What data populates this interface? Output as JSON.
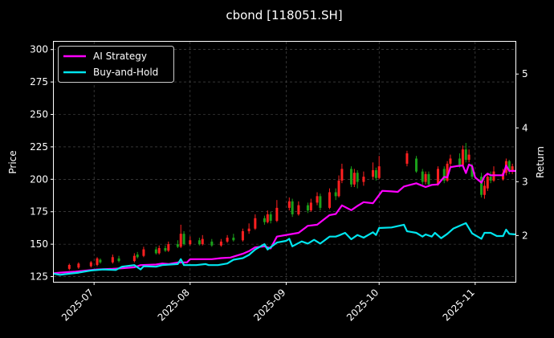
{
  "chart_data": {
    "type": "line",
    "title": "cbond [118051.SH]",
    "ylabel_left": "Price",
    "ylabel_right": "Return",
    "x_range": [
      "2025-06-18",
      "2025-11-14"
    ],
    "ylim_left": [
      121,
      306
    ],
    "ylim_right": [
      1.14,
      5.6
    ],
    "yticks_left": [
      125,
      150,
      175,
      200,
      225,
      250,
      275,
      300
    ],
    "yticks_right": [
      2,
      3,
      4,
      5
    ],
    "xticks": [
      {
        "date": "2025-07-01",
        "label": "2025-07"
      },
      {
        "date": "2025-08-01",
        "label": "2025-08"
      },
      {
        "date": "2025-09-01",
        "label": "2025-09"
      },
      {
        "date": "2025-10-01",
        "label": "2025-10"
      },
      {
        "date": "2025-11-01",
        "label": "2025-11"
      }
    ],
    "grid": true,
    "legend_position": "top-left",
    "colors": {
      "background": "#000000",
      "ai_strategy": "#ff00ff",
      "buy_and_hold": "#00e5ee",
      "candle_up": "#ff2020",
      "candle_down": "#1aa01a",
      "grid": "#555555",
      "axes": "#ffffff"
    },
    "series": [
      {
        "name": "AI Strategy",
        "axis": "right",
        "color": "#ff00ff",
        "points": [
          [
            "2025-06-18",
            1.3
          ],
          [
            "2025-06-20",
            1.31
          ],
          [
            "2025-06-25",
            1.33
          ],
          [
            "2025-07-02",
            1.37
          ],
          [
            "2025-07-07",
            1.38
          ],
          [
            "2025-07-10",
            1.39
          ],
          [
            "2025-07-14",
            1.41
          ],
          [
            "2025-07-16",
            1.45
          ],
          [
            "2025-07-21",
            1.46
          ],
          [
            "2025-07-23",
            1.48
          ],
          [
            "2025-07-25",
            1.47
          ],
          [
            "2025-07-28",
            1.5
          ],
          [
            "2025-07-31",
            1.5
          ],
          [
            "2025-08-01",
            1.56
          ],
          [
            "2025-08-05",
            1.56
          ],
          [
            "2025-08-08",
            1.56
          ],
          [
            "2025-08-11",
            1.58
          ],
          [
            "2025-08-14",
            1.59
          ],
          [
            "2025-08-18",
            1.66
          ],
          [
            "2025-08-20",
            1.71
          ],
          [
            "2025-08-22",
            1.78
          ],
          [
            "2025-08-25",
            1.8
          ],
          [
            "2025-08-27",
            1.76
          ],
          [
            "2025-08-29",
            1.98
          ],
          [
            "2025-09-02",
            2.02
          ],
          [
            "2025-09-05",
            2.05
          ],
          [
            "2025-09-08",
            2.18
          ],
          [
            "2025-09-11",
            2.2
          ],
          [
            "2025-09-15",
            2.38
          ],
          [
            "2025-09-17",
            2.4
          ],
          [
            "2025-09-19",
            2.56
          ],
          [
            "2025-09-22",
            2.47
          ],
          [
            "2025-09-24",
            2.55
          ],
          [
            "2025-09-26",
            2.62
          ],
          [
            "2025-09-29",
            2.6
          ],
          [
            "2025-10-02",
            2.83
          ],
          [
            "2025-10-05",
            2.82
          ],
          [
            "2025-10-07",
            2.81
          ],
          [
            "2025-10-09",
            2.91
          ],
          [
            "2025-10-13",
            2.97
          ],
          [
            "2025-10-16",
            2.9
          ],
          [
            "2025-10-18",
            2.94
          ],
          [
            "2025-10-20",
            2.95
          ],
          [
            "2025-10-22",
            3.09
          ],
          [
            "2025-10-23",
            3.08
          ],
          [
            "2025-10-24",
            3.27
          ],
          [
            "2025-10-26",
            3.29
          ],
          [
            "2025-10-28",
            3.3
          ],
          [
            "2025-10-29",
            3.16
          ],
          [
            "2025-10-30",
            3.32
          ],
          [
            "2025-10-31",
            3.29
          ],
          [
            "2025-11-01",
            3.08
          ],
          [
            "2025-11-03",
            2.98
          ],
          [
            "2025-11-04",
            3.1
          ],
          [
            "2025-11-05",
            3.15
          ],
          [
            "2025-11-06",
            3.12
          ],
          [
            "2025-11-07",
            3.12
          ],
          [
            "2025-11-08",
            3.12
          ],
          [
            "2025-11-10",
            3.12
          ],
          [
            "2025-11-11",
            3.3
          ],
          [
            "2025-11-12",
            3.2
          ],
          [
            "2025-11-14",
            3.2
          ]
        ]
      },
      {
        "name": "Buy-and-Hold",
        "axis": "right",
        "color": "#00e5ee",
        "points": [
          [
            "2025-06-18",
            1.29
          ],
          [
            "2025-06-20",
            1.27
          ],
          [
            "2025-06-23",
            1.29
          ],
          [
            "2025-06-26",
            1.31
          ],
          [
            "2025-06-30",
            1.35
          ],
          [
            "2025-07-02",
            1.36
          ],
          [
            "2025-07-04",
            1.37
          ],
          [
            "2025-07-08",
            1.36
          ],
          [
            "2025-07-10",
            1.42
          ],
          [
            "2025-07-14",
            1.45
          ],
          [
            "2025-07-16",
            1.37
          ],
          [
            "2025-07-17",
            1.43
          ],
          [
            "2025-07-21",
            1.42
          ],
          [
            "2025-07-23",
            1.45
          ],
          [
            "2025-07-28",
            1.47
          ],
          [
            "2025-07-29",
            1.56
          ],
          [
            "2025-07-30",
            1.45
          ],
          [
            "2025-08-03",
            1.45
          ],
          [
            "2025-08-06",
            1.47
          ],
          [
            "2025-08-07",
            1.45
          ],
          [
            "2025-08-10",
            1.45
          ],
          [
            "2025-08-13",
            1.48
          ],
          [
            "2025-08-15",
            1.55
          ],
          [
            "2025-08-18",
            1.58
          ],
          [
            "2025-08-20",
            1.64
          ],
          [
            "2025-08-22",
            1.74
          ],
          [
            "2025-08-25",
            1.84
          ],
          [
            "2025-08-26",
            1.74
          ],
          [
            "2025-08-29",
            1.87
          ],
          [
            "2025-09-01",
            1.9
          ],
          [
            "2025-09-02",
            1.94
          ],
          [
            "2025-09-03",
            1.8
          ],
          [
            "2025-09-06",
            1.89
          ],
          [
            "2025-09-08",
            1.85
          ],
          [
            "2025-09-10",
            1.92
          ],
          [
            "2025-09-12",
            1.85
          ],
          [
            "2025-09-15",
            1.98
          ],
          [
            "2025-09-17",
            1.98
          ],
          [
            "2025-09-18",
            2.0
          ],
          [
            "2025-09-20",
            2.05
          ],
          [
            "2025-09-22",
            1.93
          ],
          [
            "2025-09-24",
            2.01
          ],
          [
            "2025-09-26",
            1.96
          ],
          [
            "2025-09-29",
            2.06
          ],
          [
            "2025-09-30",
            2.01
          ],
          [
            "2025-10-01",
            2.14
          ],
          [
            "2025-10-05",
            2.15
          ],
          [
            "2025-10-09",
            2.2
          ],
          [
            "2025-10-10",
            2.08
          ],
          [
            "2025-10-13",
            2.05
          ],
          [
            "2025-10-15",
            1.98
          ],
          [
            "2025-10-16",
            2.02
          ],
          [
            "2025-10-18",
            1.98
          ],
          [
            "2025-10-19",
            2.05
          ],
          [
            "2025-10-21",
            1.95
          ],
          [
            "2025-10-23",
            2.03
          ],
          [
            "2025-10-25",
            2.13
          ],
          [
            "2025-10-27",
            2.18
          ],
          [
            "2025-10-29",
            2.23
          ],
          [
            "2025-10-31",
            2.04
          ],
          [
            "2025-11-03",
            1.94
          ],
          [
            "2025-11-04",
            2.05
          ],
          [
            "2025-11-06",
            2.05
          ],
          [
            "2025-11-08",
            1.99
          ],
          [
            "2025-11-10",
            1.99
          ],
          [
            "2025-11-11",
            2.11
          ],
          [
            "2025-11-12",
            2.03
          ],
          [
            "2025-11-14",
            2.02
          ]
        ]
      }
    ],
    "candles": [
      [
        "2025-06-23",
        131,
        134,
        130,
        135,
        "up"
      ],
      [
        "2025-06-26",
        132,
        135,
        131,
        136,
        "up"
      ],
      [
        "2025-06-30",
        133,
        136,
        132,
        137,
        "up"
      ],
      [
        "2025-07-02",
        134,
        139,
        133,
        140,
        "up"
      ],
      [
        "2025-07-03",
        138,
        136,
        135,
        139,
        "down"
      ],
      [
        "2025-07-07",
        136,
        140,
        135,
        142,
        "up"
      ],
      [
        "2025-07-09",
        139,
        137,
        136,
        141,
        "down"
      ],
      [
        "2025-07-14",
        137,
        141,
        136,
        143,
        "up"
      ],
      [
        "2025-07-15",
        142,
        140,
        139,
        144,
        "down"
      ],
      [
        "2025-07-17",
        141,
        146,
        140,
        148,
        "up"
      ],
      [
        "2025-07-21",
        146,
        143,
        142,
        148,
        "down"
      ],
      [
        "2025-07-22",
        143,
        147,
        142,
        149,
        "up"
      ],
      [
        "2025-07-24",
        147,
        145,
        144,
        149,
        "down"
      ],
      [
        "2025-07-25",
        145,
        150,
        144,
        152,
        "up"
      ],
      [
        "2025-07-28",
        150,
        148,
        147,
        153,
        "down"
      ],
      [
        "2025-07-29",
        148,
        158,
        147,
        165,
        "up"
      ],
      [
        "2025-07-30",
        158,
        150,
        149,
        160,
        "down"
      ],
      [
        "2025-08-01",
        150,
        153,
        149,
        156,
        "up"
      ],
      [
        "2025-08-04",
        153,
        150,
        149,
        155,
        "down"
      ],
      [
        "2025-08-05",
        150,
        154,
        149,
        157,
        "up"
      ],
      [
        "2025-08-08",
        152,
        149,
        148,
        154,
        "down"
      ],
      [
        "2025-08-11",
        149,
        152,
        148,
        154,
        "up"
      ],
      [
        "2025-08-13",
        152,
        155,
        151,
        157,
        "up"
      ],
      [
        "2025-08-15",
        155,
        153,
        152,
        158,
        "down"
      ],
      [
        "2025-08-18",
        153,
        160,
        152,
        162,
        "up"
      ],
      [
        "2025-08-20",
        160,
        162,
        158,
        166,
        "up"
      ],
      [
        "2025-08-22",
        162,
        170,
        161,
        173,
        "up"
      ],
      [
        "2025-08-25",
        170,
        167,
        165,
        172,
        "down"
      ],
      [
        "2025-08-26",
        167,
        173,
        166,
        176,
        "up"
      ],
      [
        "2025-08-27",
        173,
        168,
        166,
        175,
        "down"
      ],
      [
        "2025-08-29",
        168,
        178,
        167,
        184,
        "up"
      ],
      [
        "2025-09-02",
        178,
        183,
        176,
        186,
        "up"
      ],
      [
        "2025-09-03",
        183,
        173,
        171,
        185,
        "down"
      ],
      [
        "2025-09-05",
        173,
        180,
        172,
        183,
        "up"
      ],
      [
        "2025-09-08",
        180,
        176,
        174,
        182,
        "down"
      ],
      [
        "2025-09-09",
        176,
        182,
        175,
        185,
        "up"
      ],
      [
        "2025-09-11",
        182,
        187,
        180,
        190,
        "up"
      ],
      [
        "2025-09-12",
        187,
        178,
        176,
        189,
        "down"
      ],
      [
        "2025-09-15",
        178,
        190,
        177,
        193,
        "up"
      ],
      [
        "2025-09-17",
        190,
        187,
        184,
        193,
        "down"
      ],
      [
        "2025-09-18",
        187,
        199,
        186,
        203,
        "up"
      ],
      [
        "2025-09-19",
        199,
        208,
        197,
        212,
        "up"
      ],
      [
        "2025-09-22",
        208,
        196,
        194,
        210,
        "down"
      ],
      [
        "2025-09-23",
        196,
        205,
        194,
        208,
        "up"
      ],
      [
        "2025-09-24",
        205,
        198,
        193,
        207,
        "down"
      ],
      [
        "2025-09-26",
        198,
        202,
        195,
        206,
        "up"
      ],
      [
        "2025-09-29",
        202,
        207,
        200,
        213,
        "up"
      ],
      [
        "2025-09-30",
        207,
        201,
        199,
        209,
        "down"
      ],
      [
        "2025-10-01",
        201,
        210,
        200,
        218,
        "up"
      ],
      [
        "2025-10-10",
        212,
        220,
        210,
        222,
        "up"
      ],
      [
        "2025-10-13",
        216,
        206,
        205,
        218,
        "down"
      ],
      [
        "2025-10-15",
        206,
        198,
        196,
        208,
        "down"
      ],
      [
        "2025-10-16",
        198,
        204,
        196,
        206,
        "up"
      ],
      [
        "2025-10-17",
        204,
        196,
        195,
        206,
        "down"
      ],
      [
        "2025-10-20",
        196,
        208,
        195,
        210,
        "up"
      ],
      [
        "2025-10-22",
        208,
        199,
        197,
        210,
        "down"
      ],
      [
        "2025-10-23",
        199,
        212,
        198,
        214,
        "up"
      ],
      [
        "2025-10-24",
        212,
        216,
        210,
        219,
        "up"
      ],
      [
        "2025-10-27",
        216,
        211,
        209,
        220,
        "down"
      ],
      [
        "2025-10-28",
        211,
        223,
        210,
        226,
        "up"
      ],
      [
        "2025-10-29",
        223,
        215,
        213,
        228,
        "down"
      ],
      [
        "2025-10-30",
        215,
        219,
        213,
        223,
        "up"
      ],
      [
        "2025-10-31",
        210,
        202,
        200,
        212,
        "down"
      ],
      [
        "2025-11-03",
        202,
        188,
        186,
        205,
        "down"
      ],
      [
        "2025-11-04",
        188,
        195,
        185,
        199,
        "up"
      ],
      [
        "2025-11-05",
        193,
        202,
        191,
        204,
        "up"
      ],
      [
        "2025-11-06",
        202,
        199,
        197,
        206,
        "down"
      ],
      [
        "2025-11-07",
        199,
        206,
        198,
        210,
        "up"
      ],
      [
        "2025-11-10",
        200,
        205,
        199,
        208,
        "up"
      ],
      [
        "2025-11-11",
        205,
        214,
        203,
        216,
        "up"
      ],
      [
        "2025-11-12",
        214,
        206,
        204,
        215,
        "down"
      ],
      [
        "2025-11-13",
        206,
        210,
        204,
        212,
        "up"
      ]
    ]
  }
}
